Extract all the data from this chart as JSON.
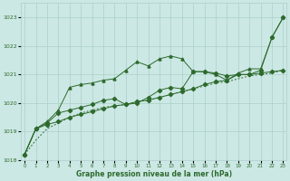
{
  "x": [
    0,
    1,
    2,
    3,
    4,
    5,
    6,
    7,
    8,
    9,
    10,
    11,
    12,
    13,
    14,
    15,
    16,
    17,
    18,
    19,
    20,
    21,
    22,
    23
  ],
  "line1_dashed": [
    1018.2,
    1018.7,
    1019.1,
    1019.3,
    1019.5,
    1019.65,
    1019.75,
    1019.85,
    1019.9,
    1019.95,
    1020.05,
    1020.1,
    1020.2,
    1020.3,
    1020.4,
    1020.5,
    1020.6,
    1020.7,
    1020.75,
    1020.85,
    1020.95,
    1021.0,
    1021.05,
    1021.15
  ],
  "line2_upper": [
    1018.2,
    1019.1,
    1019.35,
    1019.75,
    1020.55,
    1020.65,
    1020.7,
    1020.8,
    1020.85,
    1021.15,
    1021.45,
    1021.3,
    1021.55,
    1021.65,
    1021.55,
    1021.1,
    1021.1,
    1021.0,
    1020.8,
    1021.05,
    1021.2,
    1021.2,
    1022.3,
    1023.0
  ],
  "line3_mid": [
    1018.2,
    1019.1,
    1019.3,
    1019.65,
    1019.75,
    1019.85,
    1019.95,
    1020.1,
    1020.15,
    1019.95,
    1020.0,
    1020.2,
    1020.45,
    1020.55,
    1020.5,
    1021.1,
    1021.1,
    1021.05,
    1020.95,
    1021.0,
    1021.0,
    1021.15,
    1022.3,
    1023.0
  ],
  "line4_slow": [
    1018.2,
    1019.1,
    1019.25,
    1019.35,
    1019.5,
    1019.6,
    1019.7,
    1019.8,
    1019.9,
    1019.95,
    1020.05,
    1020.1,
    1020.2,
    1020.3,
    1020.4,
    1020.5,
    1020.65,
    1020.75,
    1020.8,
    1021.0,
    1021.0,
    1021.05,
    1021.1,
    1021.15
  ],
  "line_color": "#2d6a2d",
  "bg_color": "#cce8e4",
  "grid_color": "#aacfca",
  "title": "Graphe pression niveau de la mer (hPa)",
  "ylim": [
    1018,
    1023.5
  ],
  "yticks": [
    1018,
    1019,
    1020,
    1021,
    1022,
    1023
  ],
  "xlim": [
    -0.3,
    23.3
  ],
  "xticks": [
    0,
    1,
    2,
    3,
    4,
    5,
    6,
    7,
    8,
    9,
    10,
    11,
    12,
    13,
    14,
    15,
    16,
    17,
    18,
    19,
    20,
    21,
    22,
    23
  ]
}
